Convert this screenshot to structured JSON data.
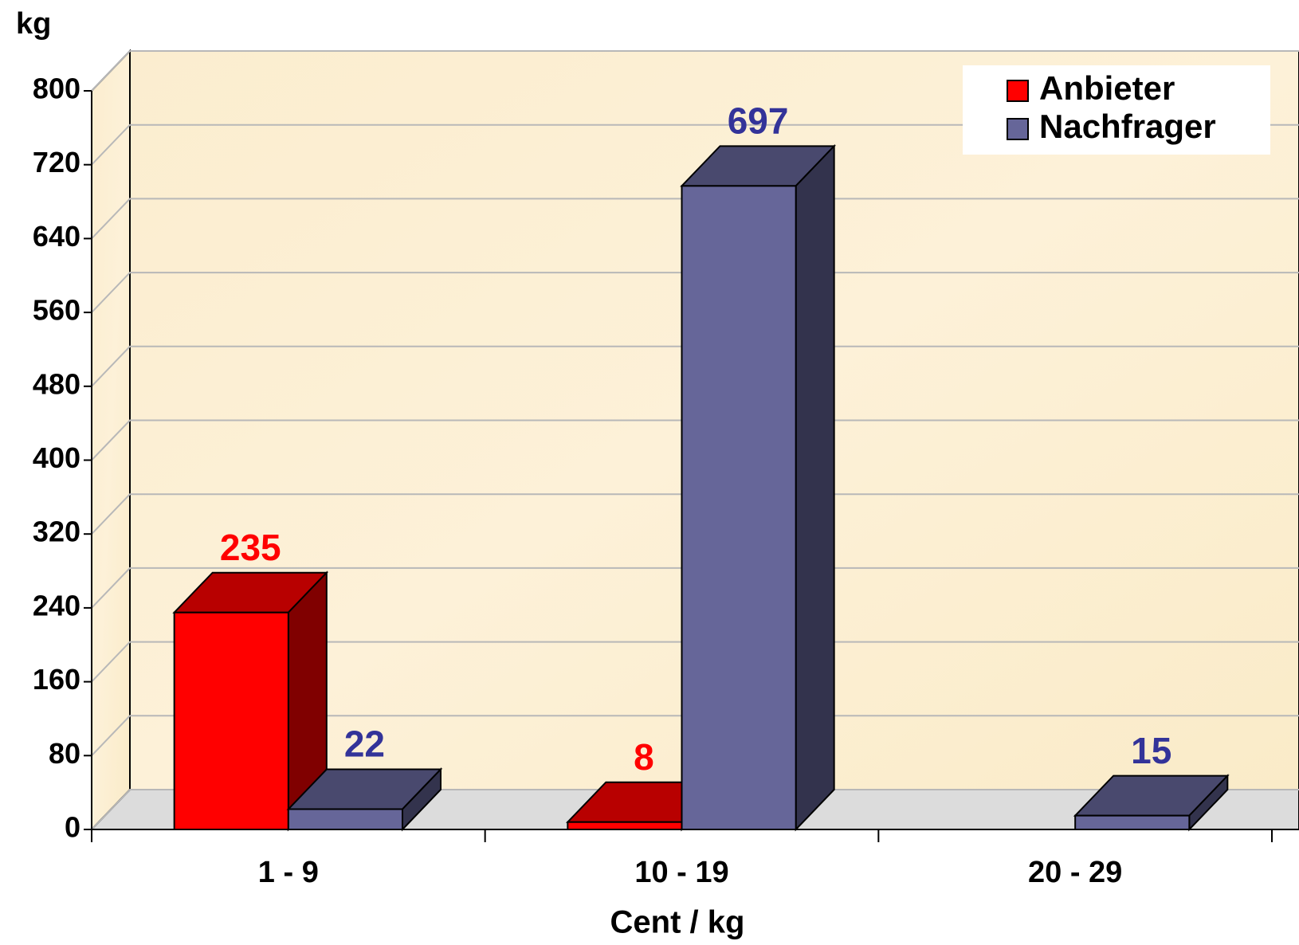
{
  "chart_data": {
    "type": "bar3d",
    "y_label": "kg",
    "x_label": "Cent / kg",
    "categories": [
      "1 - 9",
      "10 - 19",
      "20 - 29"
    ],
    "series": [
      {
        "name": "Anbieter",
        "color": "#ff0000",
        "label_color": "#ff0000",
        "values": [
          235,
          8,
          null
        ]
      },
      {
        "name": "Nachfrager",
        "color": "#666699",
        "label_color": "#333399",
        "values": [
          22,
          697,
          15
        ]
      }
    ],
    "ylim": [
      0,
      800
    ],
    "yticks": [
      0,
      80,
      160,
      240,
      320,
      400,
      480,
      560,
      640,
      720,
      800
    ],
    "grid": true,
    "legend": "top-right"
  }
}
